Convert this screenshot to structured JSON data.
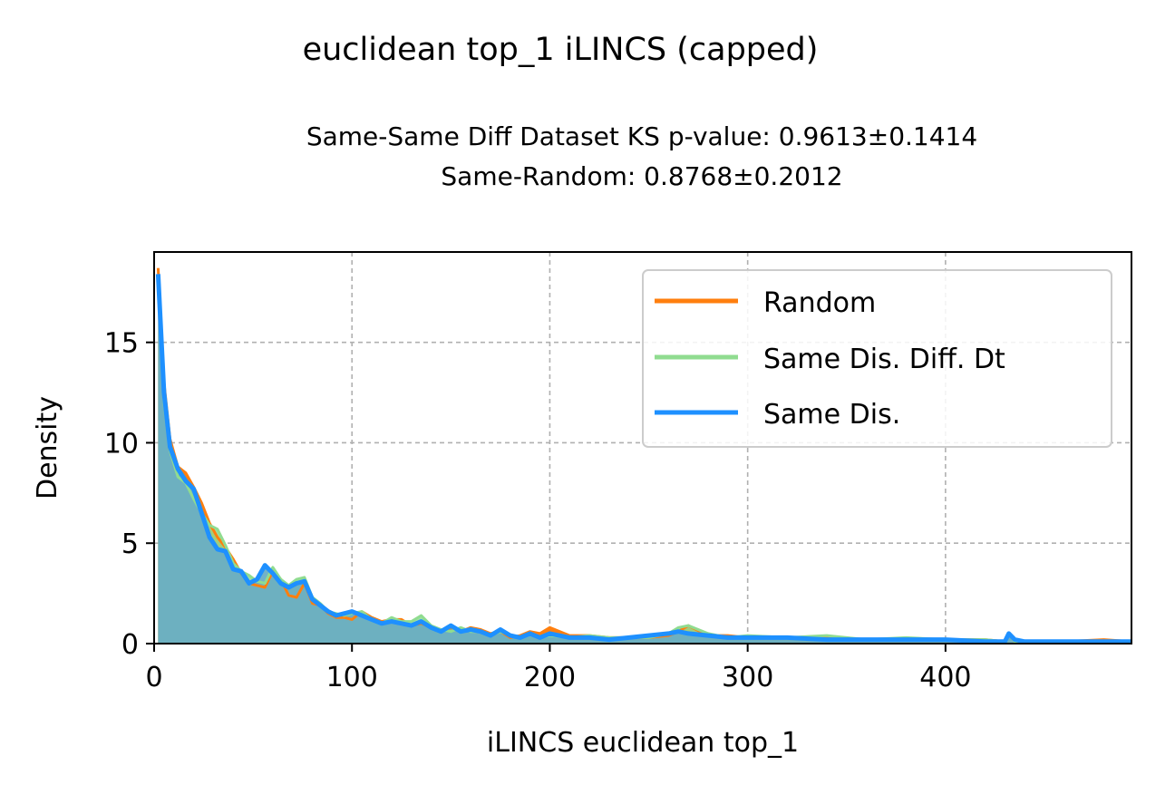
{
  "chart_data": {
    "type": "area",
    "title": "euclidean top_1 iLINCS (capped)",
    "subtitle_line1": "Same-Same Diff Dataset  KS p-value: 0.9613±0.1414",
    "subtitle_line2": "Same-Random: 0.8768±0.2012",
    "xlabel": "iLINCS euclidean top_1",
    "ylabel": "Density",
    "xlim": [
      0,
      494
    ],
    "ylim": [
      0,
      19.5
    ],
    "xticks": [
      0,
      100,
      200,
      300,
      400
    ],
    "xtick_labels": [
      "0",
      "100",
      "200",
      "300",
      "400"
    ],
    "yticks": [
      0,
      5,
      10,
      15
    ],
    "ytick_labels": [
      "0",
      "5",
      "10",
      "15"
    ],
    "grid": true,
    "legend_position": "top-right",
    "colors": {
      "random": "#ff7f0e",
      "same_diff": "#90dc90",
      "same": "#1e90ff",
      "overlap_fill": "#6aaec4"
    },
    "series": [
      {
        "name": "Random",
        "x": [
          2,
          5,
          8,
          12,
          16,
          20,
          24,
          28,
          32,
          36,
          40,
          44,
          48,
          52,
          56,
          60,
          64,
          68,
          72,
          76,
          80,
          84,
          88,
          92,
          96,
          100,
          105,
          110,
          115,
          120,
          125,
          130,
          135,
          140,
          145,
          150,
          155,
          160,
          165,
          170,
          175,
          180,
          185,
          190,
          195,
          200,
          210,
          220,
          230,
          240,
          250,
          260,
          265,
          270,
          280,
          290,
          300,
          320,
          340,
          360,
          380,
          400,
          420,
          430,
          432,
          435,
          440,
          460,
          480,
          494
        ],
        "values": [
          18.7,
          13.0,
          10.2,
          8.8,
          8.5,
          7.8,
          7.0,
          6.0,
          5.3,
          4.8,
          4.2,
          3.5,
          3.0,
          2.9,
          2.8,
          3.6,
          3.2,
          2.4,
          2.3,
          3.0,
          2.0,
          1.9,
          1.5,
          1.3,
          1.3,
          1.2,
          1.6,
          1.3,
          1.1,
          1.2,
          1.2,
          0.9,
          1.0,
          0.8,
          0.6,
          0.8,
          0.6,
          0.8,
          0.7,
          0.5,
          0.6,
          0.3,
          0.4,
          0.6,
          0.5,
          0.8,
          0.4,
          0.4,
          0.3,
          0.3,
          0.3,
          0.4,
          0.6,
          0.9,
          0.4,
          0.4,
          0.3,
          0.3,
          0.3,
          0.2,
          0.2,
          0.2,
          0.2,
          0.1,
          0.5,
          0.1,
          0.1,
          0.1,
          0.2,
          0.1
        ]
      },
      {
        "name": "Same Dis. Diff. Dt",
        "x": [
          2,
          5,
          8,
          12,
          16,
          20,
          24,
          28,
          32,
          36,
          40,
          44,
          48,
          52,
          56,
          60,
          64,
          68,
          72,
          76,
          80,
          84,
          88,
          92,
          96,
          100,
          105,
          110,
          115,
          120,
          125,
          130,
          135,
          140,
          145,
          150,
          155,
          160,
          165,
          170,
          175,
          180,
          185,
          190,
          195,
          200,
          210,
          220,
          230,
          240,
          250,
          260,
          265,
          270,
          280,
          290,
          300,
          320,
          340,
          360,
          380,
          400,
          420,
          430,
          432,
          435,
          440,
          460,
          480,
          494
        ],
        "values": [
          18.0,
          12.0,
          9.6,
          8.3,
          8.0,
          7.2,
          6.5,
          5.9,
          5.7,
          4.9,
          4.0,
          3.6,
          3.4,
          3.1,
          3.0,
          3.8,
          3.2,
          2.9,
          3.2,
          3.3,
          2.3,
          2.0,
          1.6,
          1.5,
          1.4,
          1.5,
          1.6,
          1.2,
          1.0,
          1.3,
          1.1,
          1.1,
          1.4,
          0.9,
          0.7,
          0.6,
          0.8,
          0.6,
          0.6,
          0.4,
          0.6,
          0.4,
          0.3,
          0.5,
          0.3,
          0.4,
          0.3,
          0.4,
          0.3,
          0.3,
          0.3,
          0.5,
          0.8,
          0.9,
          0.5,
          0.3,
          0.4,
          0.3,
          0.4,
          0.2,
          0.3,
          0.2,
          0.2,
          0.1,
          0.5,
          0.1,
          0.1,
          0.1,
          0.1,
          0.1
        ]
      },
      {
        "name": "Same Dis.",
        "x": [
          2,
          5,
          8,
          12,
          16,
          20,
          24,
          28,
          32,
          36,
          40,
          44,
          48,
          52,
          56,
          60,
          64,
          68,
          72,
          76,
          80,
          84,
          88,
          92,
          96,
          100,
          105,
          110,
          115,
          120,
          125,
          130,
          135,
          140,
          145,
          150,
          155,
          160,
          165,
          170,
          175,
          180,
          185,
          190,
          195,
          200,
          210,
          220,
          230,
          240,
          250,
          260,
          265,
          270,
          280,
          290,
          300,
          320,
          340,
          360,
          380,
          400,
          420,
          430,
          432,
          435,
          440,
          460,
          480,
          494
        ],
        "values": [
          18.4,
          12.5,
          9.8,
          8.7,
          8.1,
          7.7,
          6.5,
          5.3,
          4.7,
          4.6,
          3.7,
          3.6,
          3.0,
          3.2,
          3.9,
          3.5,
          3.0,
          2.8,
          3.0,
          3.1,
          2.2,
          1.9,
          1.6,
          1.4,
          1.5,
          1.6,
          1.4,
          1.2,
          1.0,
          1.1,
          1.0,
          0.9,
          1.1,
          0.8,
          0.6,
          0.9,
          0.6,
          0.7,
          0.6,
          0.4,
          0.7,
          0.4,
          0.3,
          0.5,
          0.3,
          0.5,
          0.3,
          0.3,
          0.2,
          0.3,
          0.4,
          0.5,
          0.6,
          0.5,
          0.4,
          0.3,
          0.3,
          0.3,
          0.2,
          0.2,
          0.2,
          0.2,
          0.1,
          0.1,
          0.5,
          0.2,
          0.1,
          0.1,
          0.1,
          0.1
        ]
      }
    ]
  }
}
